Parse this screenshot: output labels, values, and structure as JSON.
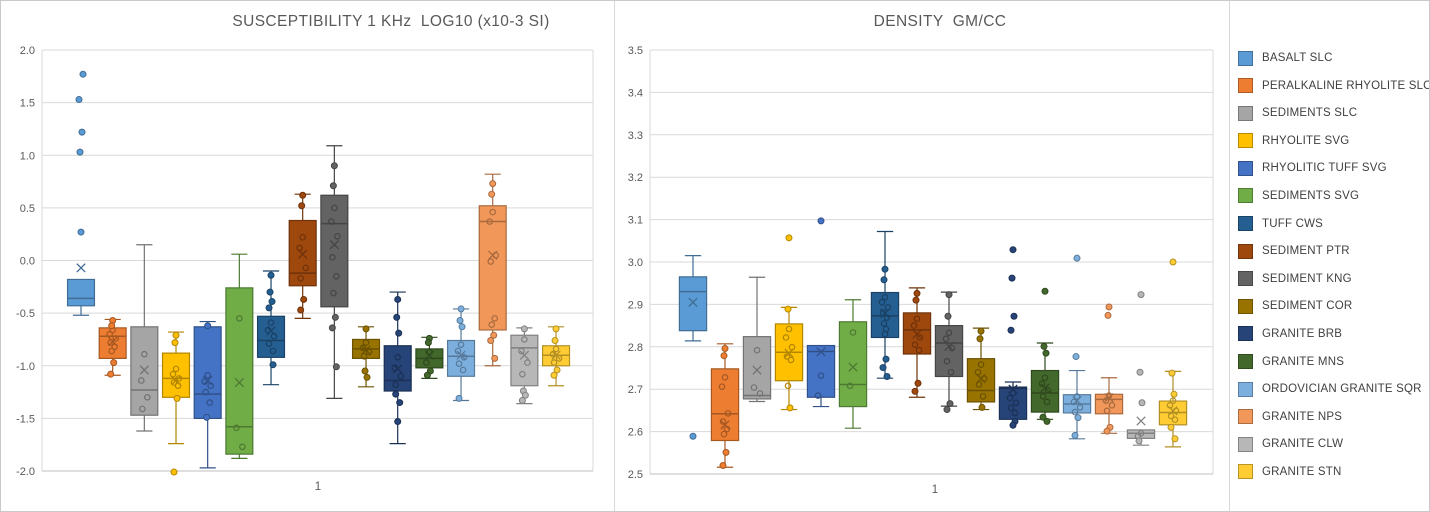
{
  "chart_data": [
    {
      "type": "box",
      "title": "SUSCEPTIBILITY 1 KHz  LOG10 (x10-3 SI)",
      "x_tick": "1",
      "ylim": [
        -2.0,
        2.0
      ],
      "y_ticks": [
        "2.0",
        "1.5",
        "1.0",
        "0.5",
        "0.0",
        "-0.5",
        "-1.0",
        "-1.5",
        "-2.0"
      ],
      "grid": true,
      "legend_position": "none",
      "series": [
        {
          "name": "BASALT SLC",
          "color": "#5B9BD5",
          "whisker_low": -0.52,
          "q1": -0.43,
          "median": -0.36,
          "q3": -0.18,
          "whisker_high": -0.18,
          "mean": -0.07,
          "outlier_dots": [
            0.27,
            1.03,
            1.22,
            1.53,
            1.77
          ],
          "inner_points": []
        },
        {
          "name": "PERALKALINE RHYOLITE SLC",
          "color": "#ED7D31",
          "whisker_low": -1.09,
          "q1": -0.93,
          "median": -0.72,
          "q3": -0.64,
          "whisker_high": -0.56,
          "mean": -0.77,
          "outlier_dots": [
            -0.57,
            -0.62,
            -0.97,
            -1.08
          ],
          "inner_points": [
            -0.66,
            -0.7,
            -0.74,
            -0.78,
            -0.82,
            -0.86
          ]
        },
        {
          "name": "SEDIMENTS SLC",
          "color": "#A5A5A5",
          "whisker_low": -1.62,
          "q1": -1.47,
          "median": -1.23,
          "q3": -0.63,
          "whisker_high": 0.15,
          "mean": -1.04,
          "outlier_dots": [],
          "inner_points": [
            -0.89,
            -1.14,
            -1.3,
            -1.41
          ]
        },
        {
          "name": "RHYOLITE SVG",
          "color": "#FFC000",
          "whisker_low": -1.74,
          "q1": -1.3,
          "median": -1.12,
          "q3": -0.88,
          "whisker_high": -0.68,
          "mean": -1.14,
          "outlier_dots": [
            -0.71,
            -0.78,
            -1.31,
            -2.01
          ],
          "inner_points": [
            -1.03,
            -1.08,
            -1.12,
            -1.16,
            -1.19
          ]
        },
        {
          "name": "RHYOLITIC TUFF SVG",
          "color": "#4472C4",
          "whisker_low": -1.97,
          "q1": -1.5,
          "median": -1.27,
          "q3": -0.63,
          "whisker_high": -0.58,
          "mean": -1.14,
          "outlier_dots": [
            -0.62,
            -1.49
          ],
          "inner_points": [
            -1.09,
            -1.15,
            -1.19,
            -1.25,
            -1.35
          ]
        },
        {
          "name": "SEDIMENTS SVG",
          "color": "#70AD47",
          "whisker_low": -1.88,
          "q1": -1.84,
          "median": -1.58,
          "q3": -0.26,
          "whisker_high": 0.06,
          "mean": -1.16,
          "outlier_dots": [],
          "inner_points": [
            -0.55,
            -1.59,
            -1.77
          ]
        },
        {
          "name": "TUFF CWS",
          "color": "#255E91",
          "whisker_low": -1.18,
          "q1": -0.92,
          "median": -0.76,
          "q3": -0.53,
          "whisker_high": -0.1,
          "mean": -0.67,
          "outlier_dots": [
            -0.14,
            -0.3,
            -0.39,
            -0.45,
            -0.99
          ],
          "inner_points": [
            -0.59,
            -0.66,
            -0.72,
            -0.79,
            -0.86
          ]
        },
        {
          "name": "SEDIMENT PTR",
          "color": "#9E480E",
          "whisker_low": -0.55,
          "q1": -0.24,
          "median": -0.12,
          "q3": 0.38,
          "whisker_high": 0.63,
          "mean": 0.06,
          "outlier_dots": [
            0.62,
            0.52,
            -0.37,
            -0.47
          ],
          "inner_points": [
            0.22,
            0.12,
            -0.07,
            -0.17
          ]
        },
        {
          "name": "SEDIMENT KNG",
          "color": "#636363",
          "whisker_low": -1.31,
          "q1": -0.44,
          "median": 0.35,
          "q3": 0.62,
          "whisker_high": 1.09,
          "mean": 0.15,
          "outlier_dots": [
            0.9,
            0.71,
            -0.54,
            -0.64,
            -1.01
          ],
          "inner_points": [
            0.5,
            0.37,
            0.23,
            0.03,
            -0.15,
            -0.31
          ]
        },
        {
          "name": "SEDIMENT COR",
          "color": "#997300",
          "whisker_low": -1.2,
          "q1": -0.93,
          "median": -0.84,
          "q3": -0.75,
          "whisker_high": -0.63,
          "mean": -0.85,
          "outlier_dots": [
            -0.65,
            -1.05,
            -1.11
          ],
          "inner_points": [
            -0.78,
            -0.83,
            -0.87,
            -0.91
          ]
        },
        {
          "name": "GRANITE BRB",
          "color": "#264478",
          "whisker_low": -1.74,
          "q1": -1.24,
          "median": -1.14,
          "q3": -0.81,
          "whisker_high": -0.3,
          "mean": -1.03,
          "outlier_dots": [
            -0.37,
            -0.54,
            -0.69,
            -1.27,
            -1.35,
            -1.53
          ],
          "inner_points": [
            -0.92,
            -1.02,
            -1.1,
            -1.18
          ]
        },
        {
          "name": "GRANITE MNS",
          "color": "#43682B",
          "whisker_low": -1.12,
          "q1": -1.02,
          "median": -0.93,
          "q3": -0.84,
          "whisker_high": -0.73,
          "mean": -0.9,
          "outlier_dots": [
            -0.74,
            -0.78,
            -1.05,
            -1.09
          ],
          "inner_points": [
            -0.87,
            -0.97
          ]
        },
        {
          "name": "ORDOVICIAN GRANITE SQR",
          "color": "#7CAFDD",
          "whisker_low": -1.33,
          "q1": -1.1,
          "median": -0.91,
          "q3": -0.76,
          "whisker_high": -0.46,
          "mean": -0.9,
          "outlier_dots": [
            -0.46,
            -0.57,
            -0.63,
            -1.31
          ],
          "inner_points": [
            -0.8,
            -0.86,
            -0.92,
            -0.98,
            -1.04
          ]
        },
        {
          "name": "GRANITE NPS",
          "color": "#F1975A",
          "whisker_low": -1.0,
          "q1": -0.66,
          "median": 0.37,
          "q3": 0.52,
          "whisker_high": 0.82,
          "mean": 0.05,
          "outlier_dots": [
            0.73,
            0.63,
            -0.71,
            -0.76,
            -0.93
          ],
          "inner_points": [
            0.46,
            0.37,
            0.05,
            -0.01,
            -0.55,
            -0.61
          ]
        },
        {
          "name": "GRANITE CLW",
          "color": "#B7B7B7",
          "whisker_low": -1.36,
          "q1": -1.19,
          "median": -0.83,
          "q3": -0.71,
          "whisker_high": -0.64,
          "mean": -0.9,
          "outlier_dots": [
            -0.65,
            -1.24,
            -1.28,
            -1.33
          ],
          "inner_points": [
            -0.75,
            -0.86,
            -0.97,
            -1.08
          ]
        },
        {
          "name": "GRANITE STN",
          "color": "#FFCD33",
          "whisker_low": -1.19,
          "q1": -1.0,
          "median": -0.9,
          "q3": -0.81,
          "whisker_high": -0.63,
          "mean": -0.9,
          "outlier_dots": [
            -0.65,
            -0.76,
            -1.04,
            -1.09
          ],
          "inner_points": [
            -0.84,
            -0.89,
            -0.93,
            -0.97
          ]
        }
      ]
    },
    {
      "type": "box",
      "title": "DENSITY  GM/CC",
      "x_tick": "1",
      "ylim": [
        2.5,
        3.5
      ],
      "y_ticks": [
        "3.5",
        "3.4",
        "3.3",
        "3.2",
        "3.1",
        "3.0",
        "2.9",
        "2.8",
        "2.7",
        "2.6",
        "2.5"
      ],
      "grid": true,
      "legend_position": "right",
      "series": [
        {
          "name": "BASALT SLC",
          "color": "#5B9BD5",
          "whisker_low": 2.814,
          "q1": 2.838,
          "median": 2.93,
          "q3": 2.965,
          "whisker_high": 3.015,
          "mean": 2.905,
          "outlier_dots": [
            2.589
          ],
          "inner_points": []
        },
        {
          "name": "PERALKALINE RHYOLITE SLC",
          "color": "#ED7D31",
          "whisker_low": 2.516,
          "q1": 2.579,
          "median": 2.642,
          "q3": 2.748,
          "whisker_high": 2.807,
          "mean": 2.616,
          "outlier_dots": [
            2.796,
            2.779,
            2.551,
            2.52
          ],
          "inner_points": [
            2.728,
            2.706,
            2.643,
            2.624,
            2.606,
            2.594
          ]
        },
        {
          "name": "SEDIMENTS SLC",
          "color": "#A5A5A5",
          "whisker_low": 2.671,
          "q1": 2.677,
          "median": 2.685,
          "q3": 2.824,
          "whisker_high": 2.964,
          "mean": 2.745,
          "outlier_dots": [],
          "inner_points": [
            2.792,
            2.704,
            2.69
          ]
        },
        {
          "name": "RHYOLITE SVG",
          "color": "#FFC000",
          "whisker_low": 2.652,
          "q1": 2.72,
          "median": 2.787,
          "q3": 2.854,
          "whisker_high": 2.893,
          "mean": 2.785,
          "outlier_dots": [
            3.057,
            2.889,
            2.656
          ],
          "inner_points": [
            2.842,
            2.822,
            2.799,
            2.777,
            2.769,
            2.708
          ]
        },
        {
          "name": "RHYOLITIC TUFF SVG",
          "color": "#4472C4",
          "whisker_low": 2.659,
          "q1": 2.681,
          "median": 2.789,
          "q3": 2.803,
          "whisker_high": 2.803,
          "mean": 2.788,
          "outlier_dots": [
            3.097
          ],
          "inner_points": [
            2.732,
            2.685
          ]
        },
        {
          "name": "SEDIMENTS SVG",
          "color": "#70AD47",
          "whisker_low": 2.608,
          "q1": 2.659,
          "median": 2.711,
          "q3": 2.859,
          "whisker_high": 2.911,
          "mean": 2.752,
          "outlier_dots": [],
          "inner_points": [
            2.834,
            2.708
          ]
        },
        {
          "name": "TUFF CWS",
          "color": "#255E91",
          "whisker_low": 2.726,
          "q1": 2.822,
          "median": 2.873,
          "q3": 2.928,
          "whisker_high": 3.072,
          "mean": 2.879,
          "outlier_dots": [
            2.983,
            2.958,
            2.771,
            2.751,
            2.73
          ],
          "inner_points": [
            2.917,
            2.905,
            2.893,
            2.881,
            2.869,
            2.855,
            2.842,
            2.83
          ]
        },
        {
          "name": "SEDIMENT PTR",
          "color": "#9E480E",
          "whisker_low": 2.681,
          "q1": 2.783,
          "median": 2.84,
          "q3": 2.88,
          "whisker_high": 2.939,
          "mean": 2.83,
          "outlier_dots": [
            2.926,
            2.91,
            2.714,
            2.695
          ],
          "inner_points": [
            2.866,
            2.85,
            2.822,
            2.805,
            2.792
          ]
        },
        {
          "name": "SEDIMENT KNG",
          "color": "#636363",
          "whisker_low": 2.66,
          "q1": 2.73,
          "median": 2.809,
          "q3": 2.85,
          "whisker_high": 2.929,
          "mean": 2.801,
          "outlier_dots": [
            2.923,
            2.872,
            2.666,
            2.652
          ],
          "inner_points": [
            2.833,
            2.819,
            2.797,
            2.766,
            2.74
          ]
        },
        {
          "name": "SEDIMENT COR",
          "color": "#997300",
          "whisker_low": 2.652,
          "q1": 2.67,
          "median": 2.697,
          "q3": 2.772,
          "whisker_high": 2.844,
          "mean": 2.725,
          "outlier_dots": [
            2.837,
            2.819,
            2.657
          ],
          "inner_points": [
            2.758,
            2.74,
            2.725,
            2.711,
            2.683
          ]
        },
        {
          "name": "GRANITE BRB",
          "color": "#264478",
          "whisker_low": 2.629,
          "q1": 2.629,
          "median": 2.702,
          "q3": 2.705,
          "whisker_high": 2.717,
          "mean": 2.7,
          "outlier_dots": [
            3.029,
            2.962,
            2.872,
            2.839,
            2.624,
            2.615
          ],
          "inner_points": [
            2.691,
            2.679,
            2.668,
            2.656,
            2.644
          ]
        },
        {
          "name": "GRANITE MNS",
          "color": "#43682B",
          "whisker_low": 2.629,
          "q1": 2.646,
          "median": 2.691,
          "q3": 2.744,
          "whisker_high": 2.809,
          "mean": 2.703,
          "outlier_dots": [
            2.931,
            2.801,
            2.785,
            2.634,
            2.624
          ],
          "inner_points": [
            2.727,
            2.713,
            2.697,
            2.683,
            2.67
          ]
        },
        {
          "name": "ORDOVICIAN GRANITE SQR",
          "color": "#7CAFDD",
          "whisker_low": 2.583,
          "q1": 2.644,
          "median": 2.665,
          "q3": 2.687,
          "whisker_high": 2.744,
          "mean": 2.673,
          "outlier_dots": [
            3.009,
            2.777,
            2.633,
            2.591
          ],
          "inner_points": [
            2.683,
            2.67,
            2.657,
            2.646
          ]
        },
        {
          "name": "GRANITE NPS",
          "color": "#F1975A",
          "whisker_low": 2.596,
          "q1": 2.642,
          "median": 2.676,
          "q3": 2.688,
          "whisker_high": 2.727,
          "mean": 2.68,
          "outlier_dots": [
            2.894,
            2.874,
            2.61,
            2.601
          ],
          "inner_points": [
            2.685,
            2.673,
            2.662,
            2.649
          ]
        },
        {
          "name": "GRANITE CLW",
          "color": "#B7B7B7",
          "whisker_low": 2.568,
          "q1": 2.584,
          "median": 2.596,
          "q3": 2.604,
          "whisker_high": 2.604,
          "mean": 2.625,
          "outlier_dots": [
            2.923,
            2.74,
            2.668,
            2.578
          ],
          "inner_points": [
            2.596,
            2.589
          ]
        },
        {
          "name": "GRANITE STN",
          "color": "#FFCD33",
          "whisker_low": 2.564,
          "q1": 2.616,
          "median": 2.645,
          "q3": 2.672,
          "whisker_high": 2.742,
          "mean": 2.649,
          "outlier_dots": [
            3.0,
            2.738,
            2.688,
            2.61,
            2.583
          ],
          "inner_points": [
            2.673,
            2.662,
            2.649,
            2.637,
            2.628
          ]
        }
      ]
    }
  ],
  "legend": {
    "items": [
      {
        "label": "BASALT SLC",
        "color": "#5B9BD5"
      },
      {
        "label": "PERALKALINE RHYOLITE SLC",
        "color": "#ED7D31"
      },
      {
        "label": "SEDIMENTS SLC",
        "color": "#A5A5A5"
      },
      {
        "label": "RHYOLITE SVG",
        "color": "#FFC000"
      },
      {
        "label": "RHYOLITIC TUFF SVG",
        "color": "#4472C4"
      },
      {
        "label": "SEDIMENTS SVG",
        "color": "#70AD47"
      },
      {
        "label": "TUFF CWS",
        "color": "#255E91"
      },
      {
        "label": "SEDIMENT PTR",
        "color": "#9E480E"
      },
      {
        "label": "SEDIMENT KNG",
        "color": "#636363"
      },
      {
        "label": "SEDIMENT COR",
        "color": "#997300"
      },
      {
        "label": "GRANITE BRB",
        "color": "#264478"
      },
      {
        "label": "GRANITE MNS",
        "color": "#43682B"
      },
      {
        "label": "ORDOVICIAN GRANITE SQR",
        "color": "#7CAFDD"
      },
      {
        "label": "GRANITE NPS",
        "color": "#F1975A"
      },
      {
        "label": "GRANITE CLW",
        "color": "#B7B7B7"
      },
      {
        "label": "GRANITE STN",
        "color": "#FFCD33"
      }
    ]
  },
  "style": {
    "gridline_color": "#d9d9d9",
    "axis_color": "#bfbfbf",
    "tick_label_color": "#595959",
    "title_color": "#595959"
  }
}
